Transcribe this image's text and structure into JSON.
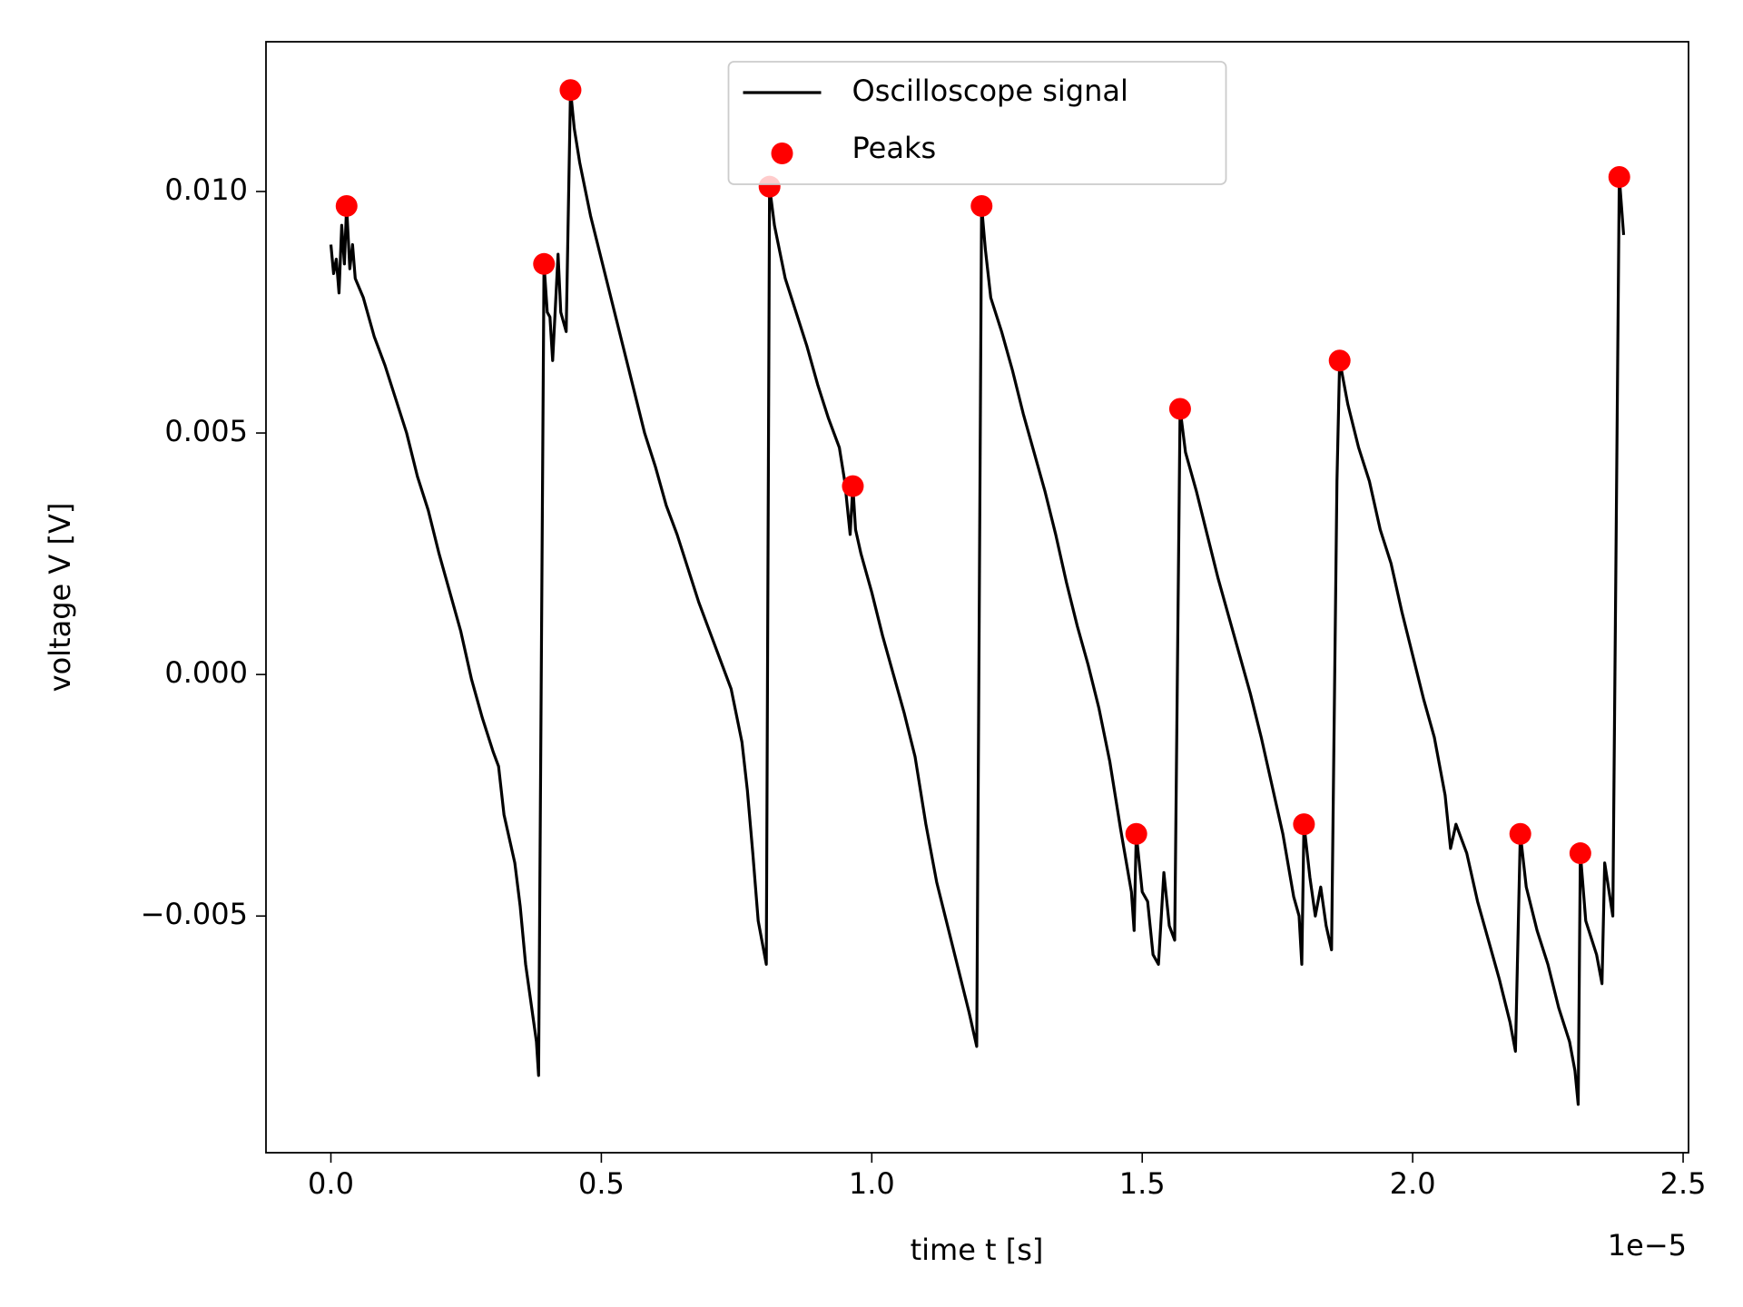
{
  "chart_data": {
    "type": "line",
    "xlabel": "time t [s]",
    "ylabel": "voltage V [V]",
    "x_offset_label": "1e−5",
    "xlim": [
      -0.12,
      2.51
    ],
    "ylim": [
      -0.0099,
      0.0131
    ],
    "xticks": [
      {
        "value": 0,
        "label": "0.0"
      },
      0.5,
      {
        "value": 1,
        "label": "1.0"
      },
      1.5,
      {
        "value": 2,
        "label": "2.0"
      },
      2.5
    ],
    "yticks": [
      {
        "value": -0.005,
        "label": "−0.005"
      },
      {
        "value": 0,
        "label": "0.000"
      },
      0.005,
      {
        "value": 0.01,
        "label": "0.010"
      }
    ],
    "grid": false,
    "legend": "upper center",
    "series": [
      {
        "name": "Oscilloscope signal",
        "type": "line",
        "color": "#000000",
        "x": [
          0,
          0.005,
          0.01,
          0.015,
          0.02,
          0.025,
          0.029,
          0.035,
          0.04,
          0.045,
          0.06,
          0.08,
          0.1,
          0.12,
          0.14,
          0.16,
          0.18,
          0.2,
          0.22,
          0.24,
          0.26,
          0.28,
          0.3,
          0.31,
          0.32,
          0.34,
          0.35,
          0.36,
          0.37,
          0.38,
          0.384,
          0.394,
          0.4,
          0.405,
          0.41,
          0.42,
          0.425,
          0.435,
          0.443,
          0.45,
          0.46,
          0.48,
          0.5,
          0.52,
          0.54,
          0.56,
          0.58,
          0.6,
          0.62,
          0.64,
          0.66,
          0.68,
          0.7,
          0.72,
          0.74,
          0.76,
          0.77,
          0.78,
          0.79,
          0.8,
          0.805,
          0.811,
          0.82,
          0.84,
          0.86,
          0.88,
          0.9,
          0.92,
          0.94,
          0.95,
          0.96,
          0.965,
          0.97,
          0.98,
          1.0,
          1.02,
          1.04,
          1.06,
          1.08,
          1.1,
          1.12,
          1.14,
          1.16,
          1.18,
          1.194,
          1.203,
          1.21,
          1.22,
          1.24,
          1.26,
          1.28,
          1.3,
          1.32,
          1.34,
          1.36,
          1.38,
          1.4,
          1.42,
          1.44,
          1.46,
          1.48,
          1.485,
          1.489,
          1.5,
          1.51,
          1.52,
          1.53,
          1.54,
          1.55,
          1.56,
          1.57,
          1.58,
          1.6,
          1.62,
          1.64,
          1.66,
          1.68,
          1.7,
          1.72,
          1.74,
          1.76,
          1.78,
          1.79,
          1.795,
          1.799,
          1.81,
          1.82,
          1.83,
          1.84,
          1.85,
          1.86,
          1.865,
          1.88,
          1.9,
          1.92,
          1.94,
          1.96,
          1.98,
          2.0,
          2.02,
          2.04,
          2.06,
          2.07,
          2.08,
          2.1,
          2.12,
          2.14,
          2.16,
          2.18,
          2.19,
          2.199,
          2.21,
          2.23,
          2.25,
          2.27,
          2.29,
          2.3,
          2.306,
          2.31,
          2.32,
          2.34,
          2.35,
          2.355,
          2.37,
          2.382,
          2.39
        ],
        "values": [
          0.0089,
          0.0083,
          0.0086,
          0.0079,
          0.0093,
          0.0085,
          0.0097,
          0.0084,
          0.0089,
          0.0082,
          0.0078,
          0.007,
          0.0064,
          0.0057,
          0.005,
          0.0041,
          0.0034,
          0.0025,
          0.0017,
          0.0009,
          -0.0001,
          -0.0009,
          -0.0016,
          -0.0019,
          -0.0029,
          -0.0039,
          -0.0048,
          -0.006,
          -0.0068,
          -0.0076,
          -0.0083,
          0.0085,
          0.0075,
          0.0074,
          0.0065,
          0.0087,
          0.0075,
          0.0071,
          0.0121,
          0.0113,
          0.0106,
          0.0095,
          0.0086,
          0.0077,
          0.0068,
          0.0059,
          0.005,
          0.0043,
          0.0035,
          0.0029,
          0.0022,
          0.0015,
          0.0009,
          0.0003,
          -0.0003,
          -0.0014,
          -0.0024,
          -0.0037,
          -0.0051,
          -0.0057,
          -0.006,
          0.0101,
          0.0093,
          0.0082,
          0.0075,
          0.0068,
          0.006,
          0.0053,
          0.0047,
          0.004,
          0.0029,
          0.0039,
          0.003,
          0.0025,
          0.0017,
          0.0008,
          0,
          -0.0008,
          -0.0017,
          -0.0031,
          -0.0043,
          -0.0052,
          -0.0061,
          -0.007,
          -0.0077,
          0.0097,
          0.0088,
          0.0078,
          0.0071,
          0.0063,
          0.0054,
          0.0046,
          0.0038,
          0.0029,
          0.0019,
          0.001,
          0.0002,
          -0.0007,
          -0.0018,
          -0.0032,
          -0.0045,
          -0.0053,
          -0.0033,
          -0.0045,
          -0.0047,
          -0.0058,
          -0.006,
          -0.0041,
          -0.0052,
          -0.0055,
          0.0055,
          0.0046,
          0.0038,
          0.0029,
          0.002,
          0.0012,
          0.0004,
          -0.0004,
          -0.0013,
          -0.0023,
          -0.0033,
          -0.0046,
          -0.005,
          -0.006,
          -0.0031,
          -0.0042,
          -0.005,
          -0.0044,
          -0.0052,
          -0.0057,
          0.004,
          0.0065,
          0.0056,
          0.0047,
          0.004,
          0.003,
          0.0023,
          0.0013,
          0.0004,
          -0.0005,
          -0.0013,
          -0.0025,
          -0.0036,
          -0.0031,
          -0.0037,
          -0.0047,
          -0.0055,
          -0.0063,
          -0.0072,
          -0.0078,
          -0.0033,
          -0.0044,
          -0.0053,
          -0.006,
          -0.0069,
          -0.0076,
          -0.0082,
          -0.0089,
          -0.0037,
          -0.0051,
          -0.0058,
          -0.0064,
          -0.0039,
          -0.005,
          0.0103,
          0.0091
        ]
      },
      {
        "name": "Peaks",
        "type": "scatter",
        "color": "#ff0000",
        "x": [
          0.029,
          0.394,
          0.443,
          0.811,
          0.965,
          1.203,
          1.489,
          1.57,
          1.799,
          1.865,
          2.199,
          2.31,
          2.382
        ],
        "values": [
          0.0097,
          0.0085,
          0.0121,
          0.0101,
          0.0039,
          0.0097,
          -0.0033,
          0.0055,
          -0.0031,
          0.0065,
          -0.0033,
          -0.0037,
          0.0103
        ]
      }
    ]
  }
}
